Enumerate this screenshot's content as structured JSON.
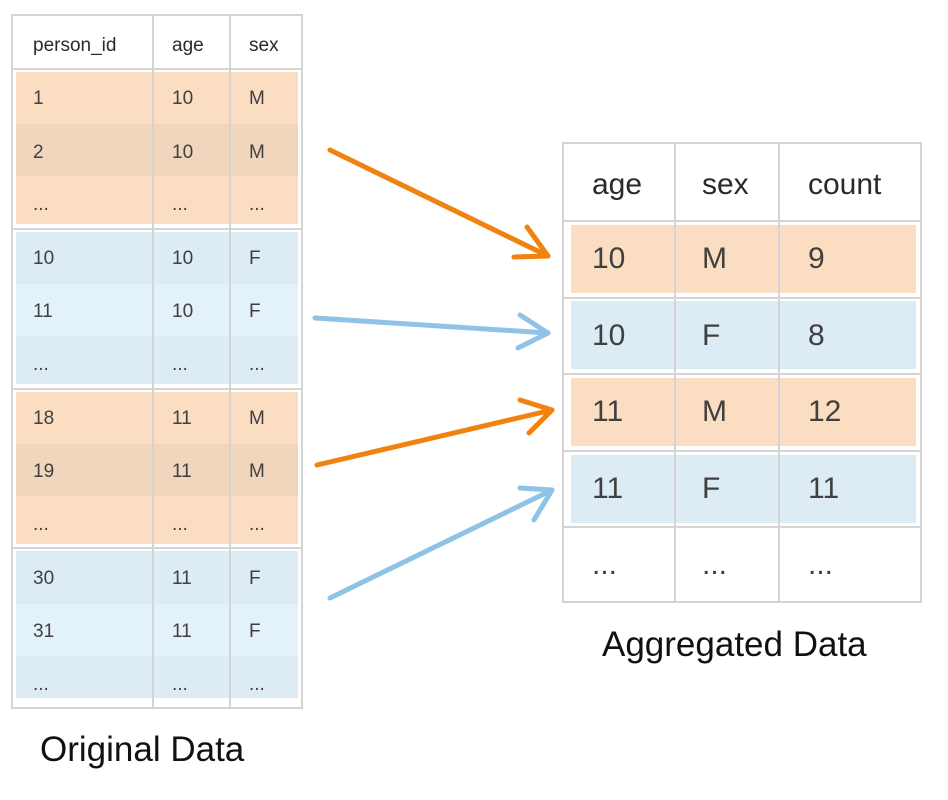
{
  "original": {
    "caption": "Original Data",
    "headers": [
      "person_id",
      "age",
      "sex"
    ],
    "rows": [
      [
        "1",
        "10",
        "M"
      ],
      [
        "2",
        "10",
        "M"
      ],
      [
        "...",
        "...",
        "..."
      ],
      [
        "10",
        "10",
        "F"
      ],
      [
        "11",
        "10",
        "F"
      ],
      [
        "...",
        "...",
        "..."
      ],
      [
        "18",
        "11",
        "M"
      ],
      [
        "19",
        "11",
        "M"
      ],
      [
        "...",
        "...",
        "..."
      ],
      [
        "30",
        "11",
        "F"
      ],
      [
        "31",
        "11",
        "F"
      ],
      [
        "...",
        "...",
        "..."
      ]
    ]
  },
  "aggregated": {
    "caption": "Aggregated Data",
    "headers": [
      "age",
      "sex",
      "count"
    ],
    "rows": [
      [
        "10",
        "M",
        "9"
      ],
      [
        "10",
        "F",
        "8"
      ],
      [
        "11",
        "M",
        "12"
      ],
      [
        "11",
        "F",
        "11"
      ],
      [
        "...",
        "...",
        "..."
      ]
    ]
  },
  "colors": {
    "orange_fill": "#fbddc1",
    "blue_fill": "#dcebf4",
    "orange_arrow": "#f0820f",
    "blue_arrow": "#8ec3e6",
    "grid": "#d4d4d4"
  }
}
